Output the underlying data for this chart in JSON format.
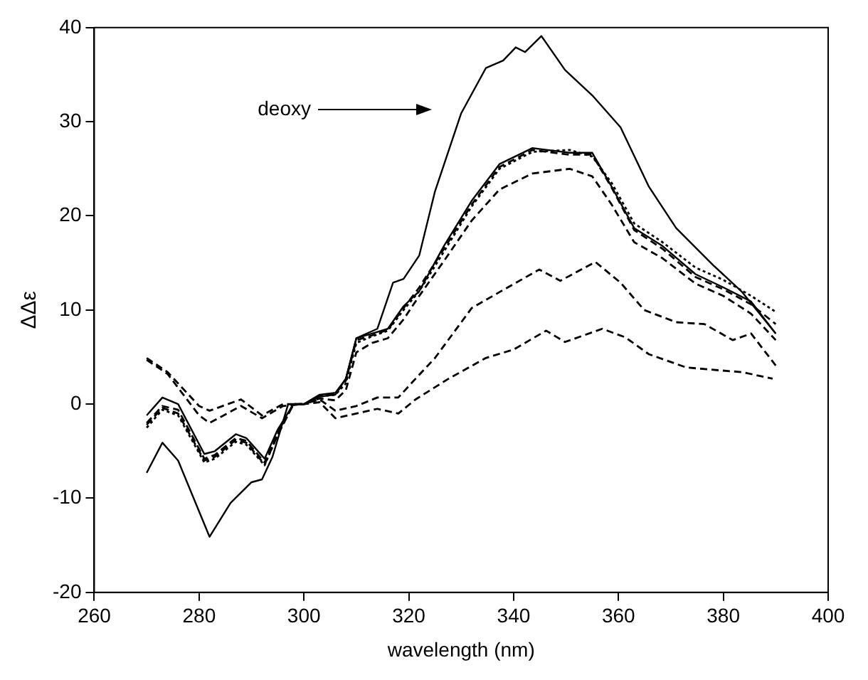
{
  "chart_data": {
    "type": "line",
    "xlabel": "wavelength (nm)",
    "ylabel": "ΔΔε",
    "xlim": [
      260,
      400
    ],
    "xticks": [
      260,
      280,
      300,
      320,
      340,
      360,
      380,
      400
    ],
    "ylim": [
      -20,
      40
    ],
    "yticks": [
      -20,
      -10,
      0,
      10,
      20,
      30,
      40
    ],
    "grid": false,
    "legend": false,
    "marker": "none",
    "annotations": [
      "deoxy"
    ],
    "series": [
      {
        "color": "#000000",
        "line_style": "solid",
        "x": [
          270,
          273,
          276,
          282,
          286,
          290,
          292,
          294,
          297,
          300,
          303,
          306,
          308,
          310,
          314,
          317,
          319,
          322,
          325,
          330,
          334.7,
          338,
          340.4,
          342.2,
          345.3,
          349.8,
          355,
          360.4,
          365.8,
          371,
          378,
          383.6,
          390
        ],
        "values": [
          -7.3,
          -4.1,
          -6,
          -14.1,
          -10.5,
          -8.3,
          -8,
          -5.6,
          0,
          0,
          0.8,
          1,
          2.7,
          7,
          8,
          12.9,
          13.3,
          15.8,
          22.6,
          30.9,
          35.7,
          36.5,
          37.9,
          37.4,
          39.1,
          35.5,
          32.8,
          29.4,
          23.1,
          18.7,
          14.8,
          11.9,
          7.5
        ]
      },
      {
        "color": "#000000",
        "line_style": "solid",
        "x": [
          270,
          273,
          276,
          281,
          283,
          287,
          289,
          292.5,
          295,
          298,
          300,
          303,
          306,
          308,
          310,
          313,
          316,
          319,
          322,
          326.7,
          332,
          337.3,
          343.6,
          350.7,
          355,
          358.7,
          363,
          368.4,
          374.7,
          380,
          385.3,
          390
        ],
        "values": [
          -1.2,
          0.7,
          0,
          -5.3,
          -5,
          -3.2,
          -3.6,
          -5.8,
          -2.7,
          0,
          0,
          1,
          1.2,
          2.7,
          7,
          7.5,
          8,
          10.4,
          12,
          16.8,
          21.6,
          25.5,
          27.2,
          26.7,
          26.7,
          23.1,
          18.7,
          16.8,
          13.8,
          12.4,
          10.9,
          7.5
        ]
      },
      {
        "color": "#000000",
        "line_style": "dotted",
        "x": [
          270,
          273,
          276,
          281,
          283,
          287,
          289,
          292.5,
          295,
          298,
          300,
          303,
          306,
          308,
          310,
          313,
          316,
          319,
          322,
          326.7,
          332,
          337.3,
          343.6,
          350.7,
          355,
          358.7,
          363,
          368.4,
          374.7,
          380,
          385.3,
          390
        ],
        "values": [
          -2.5,
          -0.6,
          -1.2,
          -6.2,
          -5.8,
          -4,
          -4.3,
          -6.5,
          -3.2,
          0,
          0,
          0.8,
          1,
          2.2,
          6.5,
          7.2,
          7.8,
          10,
          12,
          16.2,
          21,
          25,
          26.8,
          27,
          26.3,
          23.5,
          19.2,
          17.2,
          14.5,
          13.2,
          11.5,
          9.8
        ]
      },
      {
        "color": "#000000",
        "line_style": "dashed",
        "x": [
          270,
          273,
          276,
          281,
          283,
          287,
          289,
          292.5,
          295,
          298,
          300,
          303,
          306,
          308,
          310,
          313,
          316,
          319,
          322,
          326.7,
          332,
          337.3,
          343.6,
          350.7,
          355,
          358.7,
          363,
          368.4,
          374.7,
          380,
          385.3,
          390
        ],
        "values": [
          -2,
          -0.2,
          -0.6,
          -5.8,
          -5.4,
          -3.6,
          -3.9,
          -6.2,
          -3,
          0,
          0,
          0.9,
          1.1,
          2.5,
          6.8,
          7.3,
          7.9,
          10.2,
          12.4,
          16.5,
          21.2,
          25.2,
          27,
          26.5,
          26.5,
          23,
          18.5,
          16.5,
          13.5,
          12.2,
          10.6,
          8.5
        ]
      },
      {
        "color": "#000000",
        "line_style": "dashed",
        "x": [
          270,
          273,
          276,
          281,
          283,
          287,
          289,
          292.5,
          295,
          298,
          300,
          303,
          306,
          308,
          310,
          313,
          316,
          319,
          322,
          326.7,
          332,
          337.3,
          343.6,
          350.7,
          355,
          358.7,
          363,
          368.4,
          374.7,
          380,
          385.3,
          390
        ],
        "values": [
          -2.2,
          -0.4,
          -1,
          -6,
          -5.6,
          -3.8,
          -4.1,
          -6.4,
          -3.3,
          0,
          0,
          0.6,
          0.4,
          1.5,
          5.5,
          6.5,
          7,
          9,
          11.5,
          15.2,
          19.5,
          22.8,
          24.5,
          25,
          24.2,
          21.2,
          17.2,
          15.5,
          12.8,
          11.5,
          9.6,
          6.8
        ]
      },
      {
        "color": "#000000",
        "line_style": "dashed",
        "x": [
          270,
          274,
          280,
          282,
          288,
          292,
          296,
          300,
          303,
          306,
          310,
          314,
          318,
          321.3,
          325,
          332,
          337.3,
          344.9,
          348.9,
          355.6,
          360.4,
          364.9,
          371,
          376.4,
          381.8,
          385.3,
          390
        ],
        "values": [
          4.9,
          3.4,
          -0.2,
          -0.7,
          0.5,
          -1.2,
          0,
          0,
          0.5,
          -0.7,
          -0.2,
          0.7,
          0.7,
          2.7,
          4.9,
          10.2,
          11.9,
          14.3,
          13.1,
          15.1,
          12.9,
          10,
          8.7,
          8.5,
          6.8,
          7.5,
          4.1
        ]
      },
      {
        "color": "#000000",
        "line_style": "dashed",
        "x": [
          270,
          274,
          280,
          282,
          288,
          292,
          296,
          300,
          303,
          306,
          310,
          314,
          318,
          321.3,
          327.6,
          334.7,
          340,
          346.2,
          349.8,
          356.9,
          361.3,
          365.8,
          372.9,
          379,
          383.6,
          389.4
        ],
        "values": [
          4.7,
          3.2,
          -1.2,
          -2,
          -0.2,
          -1.5,
          -0.2,
          0,
          0.2,
          -1.5,
          -1,
          -0.5,
          -1,
          0.5,
          2.7,
          4.9,
          5.8,
          7.8,
          6.6,
          8,
          7.1,
          5.3,
          3.9,
          3.6,
          3.4,
          2.7
        ]
      }
    ]
  }
}
